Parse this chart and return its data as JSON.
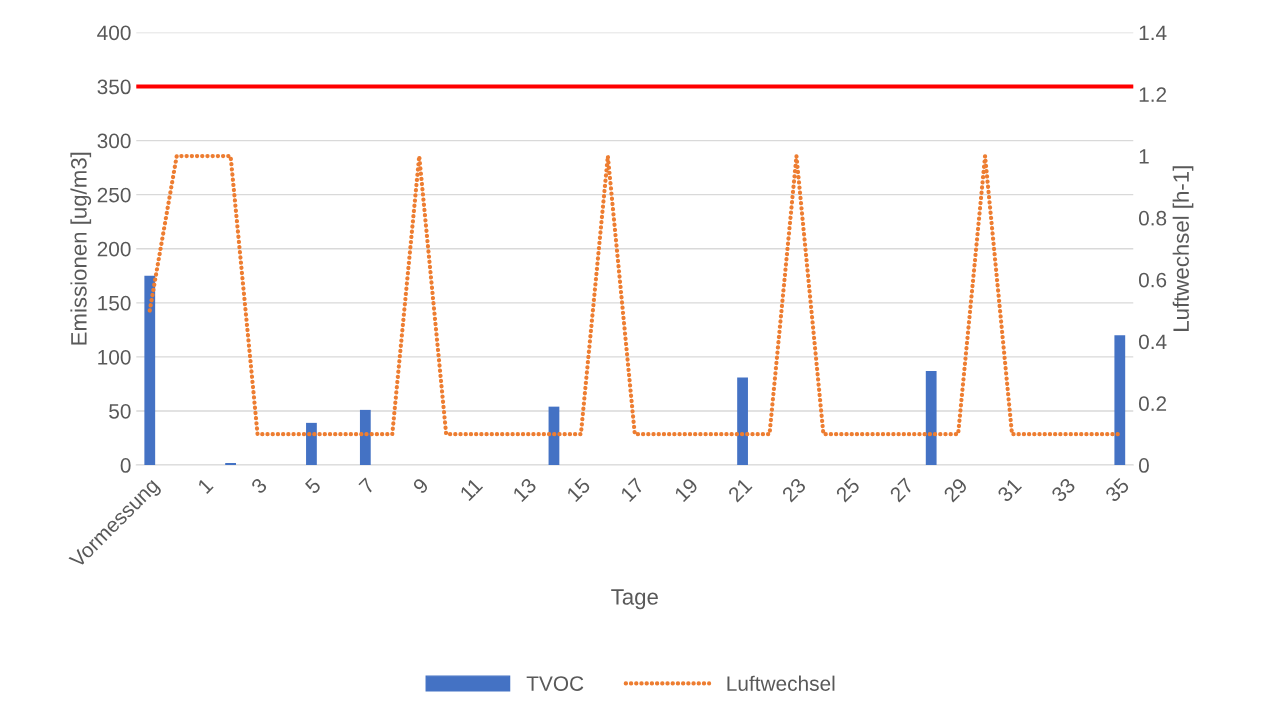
{
  "chart_data": {
    "type": "bar",
    "xlabel": "Tage",
    "ylabel": "Emissionen [ug/m3]",
    "y2label": "Luftwechsel [h-1]",
    "categories": [
      "Vormessung",
      null,
      "1",
      null,
      "3",
      null,
      "5",
      null,
      "7",
      null,
      "9",
      null,
      "11",
      null,
      "13",
      null,
      "15",
      null,
      "17",
      null,
      "19",
      null,
      "21",
      null,
      "23",
      null,
      "25",
      null,
      "27",
      null,
      "29",
      null,
      "31",
      null,
      "33",
      null,
      "35"
    ],
    "series": [
      {
        "name": "TVOC",
        "color": "#4472c4",
        "values": [
          175,
          null,
          null,
          2,
          null,
          null,
          39,
          null,
          51,
          null,
          null,
          null,
          null,
          null,
          null,
          54,
          null,
          null,
          null,
          null,
          null,
          null,
          81,
          null,
          null,
          null,
          null,
          null,
          null,
          87,
          null,
          null,
          null,
          null,
          null,
          null,
          120
        ]
      },
      {
        "name": "Luftwechsel",
        "type": "line",
        "axis": "y2",
        "color": "#ed7d31",
        "line_style": "dotted",
        "values": [
          0.5,
          1,
          1,
          1,
          0.1,
          0.1,
          0.1,
          0.1,
          0.1,
          0.1,
          1,
          0.1,
          0.1,
          0.1,
          0.1,
          0.1,
          0.1,
          1,
          0.1,
          0.1,
          0.1,
          0.1,
          0.1,
          0.1,
          1,
          0.1,
          0.1,
          0.1,
          0.1,
          0.1,
          0.1,
          1,
          0.1,
          0.1,
          0.1,
          0.1,
          0.1
        ]
      }
    ],
    "ylim": [
      0,
      400
    ],
    "yticks": [
      0,
      50,
      100,
      150,
      200,
      250,
      300,
      350,
      400
    ],
    "y2lim": [
      0,
      1.4
    ],
    "y2ticks": [
      0,
      0.2,
      0.4,
      0.6,
      0.8,
      1,
      1.2,
      1.4
    ],
    "ref_lines": [
      {
        "axis": "y",
        "value": 350,
        "color": "#ff0000",
        "line_style": "solid"
      }
    ],
    "grid": "y",
    "legend": "bottom"
  }
}
